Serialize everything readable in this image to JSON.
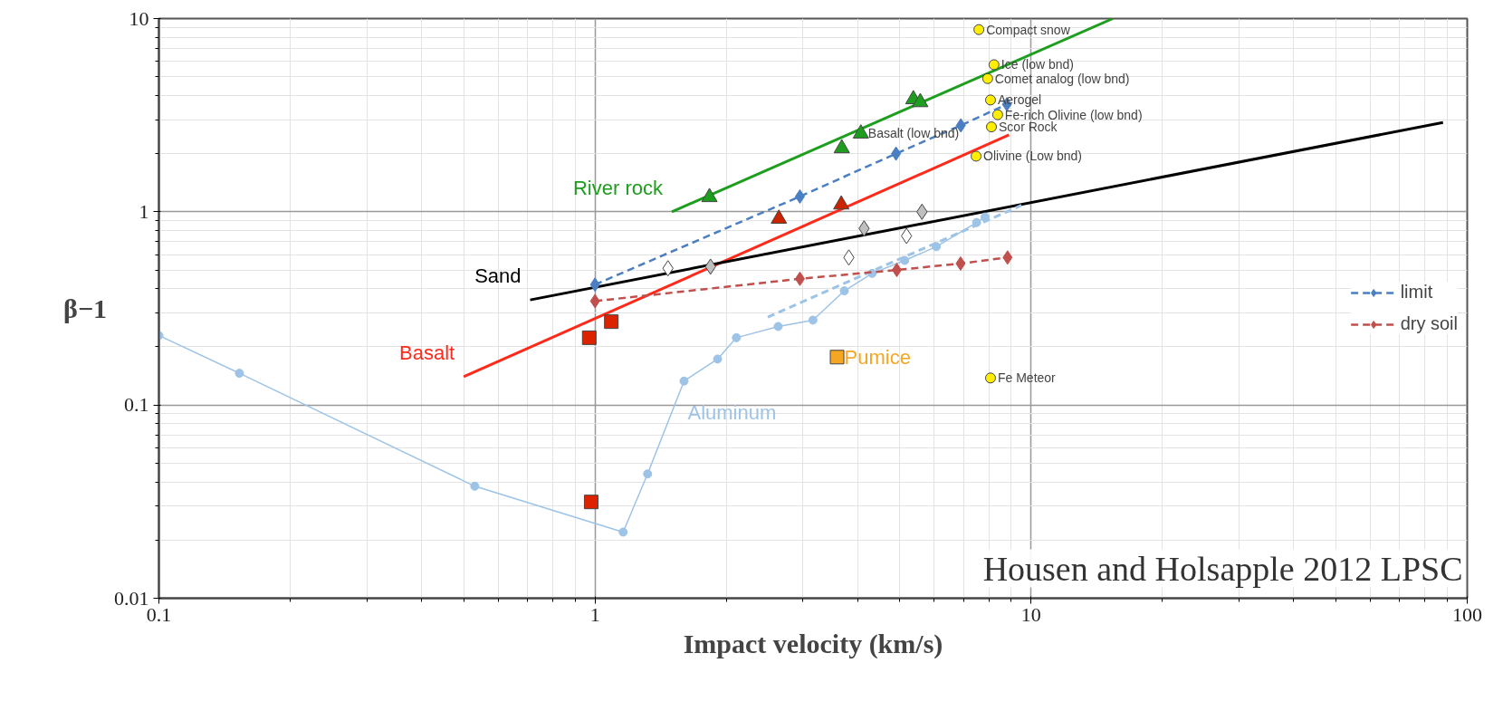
{
  "chart_data": {
    "type": "scatter",
    "xlabel": "Impact velocity (km/s)",
    "ylabel": "β−1",
    "log": "xy",
    "xlim": [
      0.1,
      100
    ],
    "ylim": [
      0.01,
      10
    ],
    "xticks": [
      0.1,
      1,
      10,
      100
    ],
    "yticks": [
      0.01,
      0.1,
      1,
      10
    ],
    "grid": true,
    "legend": "right",
    "series": [
      {
        "type": "line",
        "color": "#1e9e1e",
        "x": [
          1.5,
          15.4
        ],
        "values": [
          1.0,
          10
        ]
      },
      {
        "marker": "triangle",
        "color": "#1e9e1e",
        "x": [
          1.83,
          3.68,
          4.07,
          5.37,
          5.57
        ],
        "values": [
          1.19,
          2.13,
          2.54,
          3.82,
          3.69
        ]
      },
      {
        "type": "line",
        "color": "#ff2a1a",
        "x": [
          0.5,
          8.9
        ],
        "values": [
          0.14,
          2.5
        ]
      },
      {
        "marker": "triangle",
        "color": "#cc2200",
        "x": [
          2.64,
          3.67
        ],
        "values": [
          0.92,
          1.09
        ]
      },
      {
        "marker": "square",
        "color": "#dd2200",
        "x": [
          0.97,
          1.09,
          0.98
        ],
        "values": [
          0.223,
          0.27,
          0.0315
        ]
      },
      {
        "type": "line",
        "color": "#000000",
        "x": [
          0.71,
          88
        ],
        "values": [
          0.35,
          2.9
        ]
      },
      {
        "marker": "diamond",
        "color": "#bfbfbf",
        "x": [
          1.84,
          4.14,
          5.62
        ],
        "values": [
          0.52,
          0.82,
          1.0
        ]
      },
      {
        "marker": "diamond",
        "color": "#ffffff",
        "x": [
          1.47,
          3.82,
          5.18
        ],
        "values": [
          0.51,
          0.58,
          0.75
        ]
      },
      {
        "type": "line",
        "line_style": "solid",
        "marker": "circle",
        "color": "#9dc3e6",
        "x": [
          0.1,
          0.153,
          0.53,
          1.16,
          1.32,
          1.6,
          1.91,
          2.11,
          2.63,
          3.16,
          3.73,
          4.32,
          5.13,
          6.06,
          7.5,
          7.84
        ],
        "values": [
          0.229,
          0.146,
          0.038,
          0.022,
          0.044,
          0.133,
          0.173,
          0.223,
          0.255,
          0.275,
          0.39,
          0.48,
          0.56,
          0.66,
          0.88,
          0.94
        ]
      },
      {
        "type": "line",
        "line_style": "dashed",
        "color": "#9dc3e6",
        "x": [
          2.49,
          9.5
        ],
        "values": [
          0.285,
          1.08
        ]
      },
      {
        "marker": "square",
        "color": "#f5a623",
        "x": [
          3.59
        ],
        "values": [
          0.177
        ]
      },
      {
        "marker": "circle",
        "color": "#ffee00",
        "x": [
          7.59,
          8.22,
          7.95,
          8.07,
          8.38,
          8.11,
          7.48,
          8.07
        ],
        "values": [
          8.77,
          5.77,
          4.89,
          3.79,
          3.18,
          2.75,
          1.94,
          0.138
        ]
      },
      {
        "type": "line",
        "name": "limit",
        "line_style": "dashed",
        "marker": "diamond",
        "color": "#4a7fc1",
        "x": [
          1.0,
          2.95,
          4.9,
          6.9,
          8.8
        ],
        "values": [
          0.42,
          1.2,
          2.0,
          2.8,
          3.6
        ]
      },
      {
        "type": "line",
        "name": "dry soil",
        "line_style": "dashed",
        "marker": "diamond",
        "color": "#c0504d",
        "x": [
          1.0,
          2.95,
          4.92,
          6.89,
          8.83
        ],
        "values": [
          0.345,
          0.45,
          0.5,
          0.54,
          0.58
        ]
      }
    ],
    "annotations": [
      {
        "text": "River rock",
        "x": 1.5,
        "y": 1.0
      },
      {
        "text": "Sand",
        "x": 0.71,
        "y": 0.35
      },
      {
        "text": "Basalt",
        "x": 0.5,
        "y": 0.14
      },
      {
        "text": "Aluminum",
        "x": 1.6,
        "y": 0.133
      },
      {
        "text": "Pumice",
        "x": 3.59,
        "y": 0.177
      },
      {
        "text": "Basalt (low bnd)",
        "x": 4.07,
        "y": 2.54
      },
      {
        "text": "Compact snow",
        "x": 7.59,
        "y": 8.77
      },
      {
        "text": "Ice (low bnd)",
        "x": 8.22,
        "y": 5.77
      },
      {
        "text": "Comet analog (low bnd)",
        "x": 7.95,
        "y": 4.89
      },
      {
        "text": "Aerogel",
        "x": 8.07,
        "y": 3.79
      },
      {
        "text": "Fe-rich Olivine (low bnd)",
        "x": 8.38,
        "y": 3.18
      },
      {
        "text": "Scor Rock",
        "x": 8.11,
        "y": 2.75
      },
      {
        "text": "Olivine (Low bnd)",
        "x": 7.48,
        "y": 1.94
      },
      {
        "text": "Fe Meteor",
        "x": 8.07,
        "y": 0.138
      },
      "Housen and Holsapple 2012 LPSC"
    ]
  }
}
